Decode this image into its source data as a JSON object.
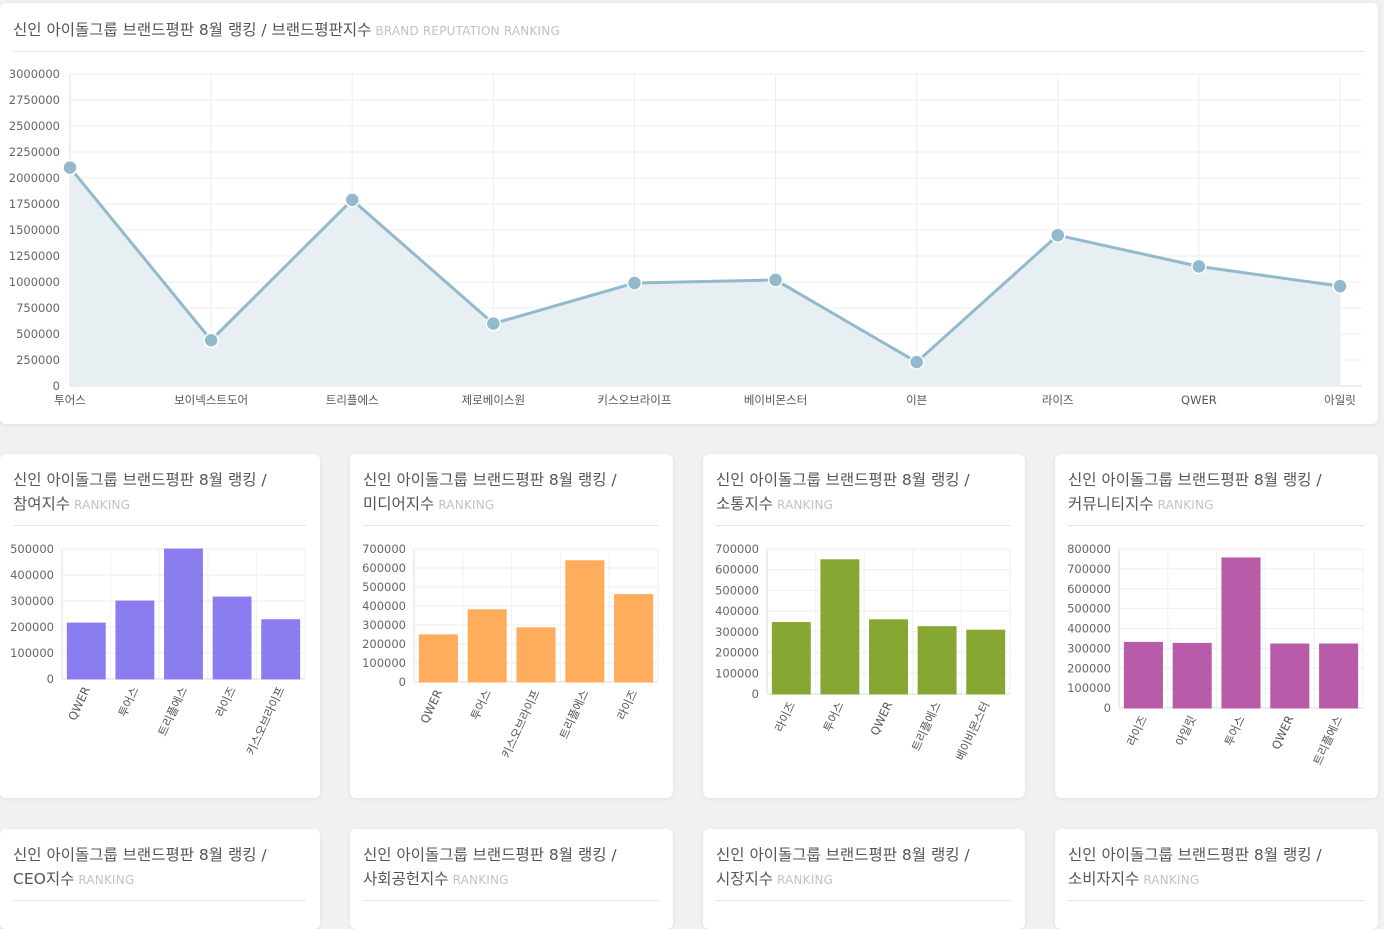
{
  "main_card": {
    "title": "신인 아이돌그룹 브랜드평판 8월 랭킹 / 브랜드평판지수",
    "subtitle": "BRAND REPUTATION RANKING"
  },
  "small_card_prefix": "신인 아이돌그룹 브랜드평판 8월 랭킹 /",
  "small_card_subtitle": "RANKING",
  "bottom_cards": [
    {
      "title": "CEO지수"
    },
    {
      "title": "사회공헌지수"
    },
    {
      "title": "시장지수"
    },
    {
      "title": "소비자지수"
    }
  ],
  "colors": {
    "line": "#93b9cd",
    "line_fill": "#e8eff3",
    "participation": "#8b7df0",
    "media": "#ffad5c",
    "communication": "#87a733",
    "community": "#b85ba8"
  },
  "chart_data": [
    {
      "type": "area",
      "categories": [
        "투어스",
        "보이넥스트도어",
        "트리플에스",
        "제로베이스원",
        "키스오브라이프",
        "베이비몬스터",
        "이븐",
        "라이즈",
        "QWER",
        "아일릿"
      ],
      "values": [
        2100000,
        440000,
        1790000,
        600000,
        990000,
        1020000,
        230000,
        1450000,
        1150000,
        960000
      ],
      "yticks": [
        0,
        250000,
        500000,
        750000,
        1000000,
        1250000,
        1500000,
        1750000,
        2000000,
        2250000,
        2500000,
        2750000,
        3000000
      ],
      "ylim": [
        0,
        3000000
      ],
      "grid": true
    },
    {
      "type": "bar",
      "title": "참여지수",
      "categories": [
        "QWER",
        "투어스",
        "트리플에스",
        "라이즈",
        "키스오브라이프"
      ],
      "values": [
        215000,
        300000,
        500000,
        315000,
        228000
      ],
      "yticks": [
        0,
        100000,
        200000,
        300000,
        400000,
        500000
      ],
      "ylim": [
        0,
        500000
      ],
      "grid": true
    },
    {
      "type": "bar",
      "title": "미디어지수",
      "categories": [
        "QWER",
        "투어스",
        "키스오브라이프",
        "트리플에스",
        "라이즈"
      ],
      "values": [
        248000,
        380000,
        285000,
        638000,
        460000
      ],
      "yticks": [
        0,
        100000,
        200000,
        300000,
        400000,
        500000,
        600000,
        700000
      ],
      "ylim": [
        0,
        700000
      ],
      "grid": true
    },
    {
      "type": "bar",
      "title": "소통지수",
      "categories": [
        "라이즈",
        "투어스",
        "QWER",
        "트리플에스",
        "베이비몬스터"
      ],
      "values": [
        345000,
        648000,
        358000,
        325000,
        308000
      ],
      "yticks": [
        0,
        100000,
        200000,
        300000,
        400000,
        500000,
        600000,
        700000
      ],
      "ylim": [
        0,
        700000
      ],
      "grid": true
    },
    {
      "type": "bar",
      "title": "커뮤니티지수",
      "categories": [
        "라이즈",
        "아일릿",
        "투어스",
        "QWER",
        "트리플에스"
      ],
      "values": [
        330000,
        325000,
        755000,
        322000,
        322000
      ],
      "yticks": [
        0,
        100000,
        200000,
        300000,
        400000,
        500000,
        600000,
        700000,
        800000
      ],
      "ylim": [
        0,
        800000
      ],
      "grid": true
    }
  ]
}
